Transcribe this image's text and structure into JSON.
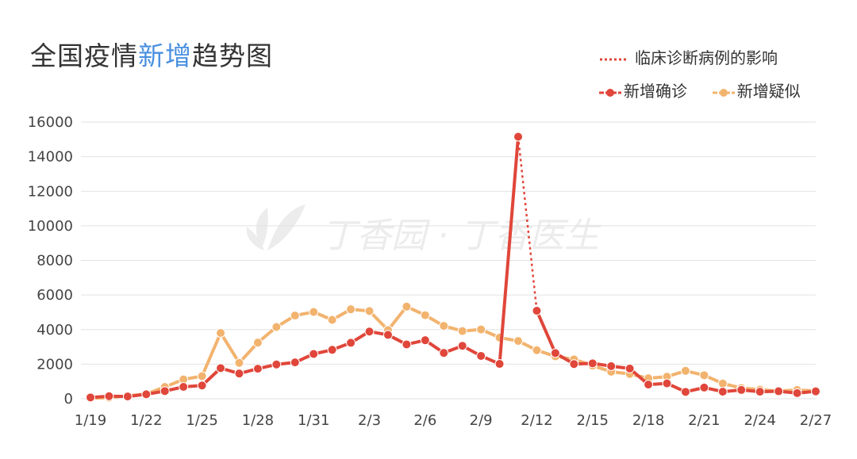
{
  "header": {
    "title_part1": "全国疫情",
    "title_highlight": "新增",
    "title_part2": "趋势图"
  },
  "colors": {
    "confirmed": "#e0463a",
    "suspected": "#f2b36e",
    "highlight": "#4a8fe0",
    "text": "#333333",
    "grid": "#e2e2e2",
    "watermark": "#ececec"
  },
  "legend": {
    "clinical_label": "临床诊断病例的影响",
    "confirmed_label": "新增确诊",
    "suspected_label": "新增疑似"
  },
  "watermark": {
    "text": "丁香园 · 丁香医生",
    "icon": "leaf-icon"
  },
  "chart_data": {
    "type": "line",
    "title": "全国疫情新增趋势图",
    "xlabel": "",
    "ylabel": "",
    "ylim": [
      0,
      16000
    ],
    "y_ticks": [
      0,
      2000,
      4000,
      6000,
      8000,
      10000,
      12000,
      14000,
      16000
    ],
    "x": [
      "1/19",
      "1/20",
      "1/21",
      "1/22",
      "1/23",
      "1/24",
      "1/25",
      "1/26",
      "1/27",
      "1/28",
      "1/29",
      "1/30",
      "1/31",
      "2/1",
      "2/2",
      "2/3",
      "2/4",
      "2/5",
      "2/6",
      "2/7",
      "2/8",
      "2/9",
      "2/10",
      "2/11",
      "2/12",
      "2/13",
      "2/14",
      "2/15",
      "2/16",
      "2/17",
      "2/18",
      "2/19",
      "2/20",
      "2/21",
      "2/22",
      "2/23",
      "2/24",
      "2/25",
      "2/26",
      "2/27"
    ],
    "x_tick_labels": [
      "1/19",
      "1/22",
      "1/25",
      "1/28",
      "1/31",
      "2/3",
      "2/6",
      "2/9",
      "2/12",
      "2/15",
      "2/18",
      "2/21",
      "2/24",
      "2/27"
    ],
    "grid": true,
    "legend_position": "top-right",
    "series": [
      {
        "name": "新增确诊",
        "values": [
          77,
          149,
          131,
          259,
          444,
          688,
          769,
          1771,
          1459,
          1737,
          1982,
          2102,
          2590,
          2829,
          3235,
          3887,
          3694,
          3143,
          3385,
          2652,
          3062,
          2478,
          2015,
          15152,
          5090,
          2641,
          2008,
          2048,
          1886,
          1749,
          820,
          889,
          397,
          648,
          409,
          508,
          406,
          433,
          327,
          427
        ]
      },
      {
        "name": "新增疑似",
        "values": [
          27,
          65,
          175,
          275,
          680,
          1118,
          1309,
          3806,
          2077,
          3248,
          4148,
          4812,
          5019,
          4562,
          5173,
          5072,
          3971,
          5328,
          4833,
          4214,
          3916,
          4008,
          3536,
          3342,
          2807,
          2450,
          2277,
          1918,
          1563,
          1432,
          1185,
          1277,
          1614,
          1361,
          882,
          620,
          530,
          439,
          508,
          452
        ]
      }
    ],
    "annotation": {
      "label": "临床诊断病例的影响",
      "from_date": "2/11",
      "to_date": "2/12",
      "style": "dotted"
    }
  }
}
